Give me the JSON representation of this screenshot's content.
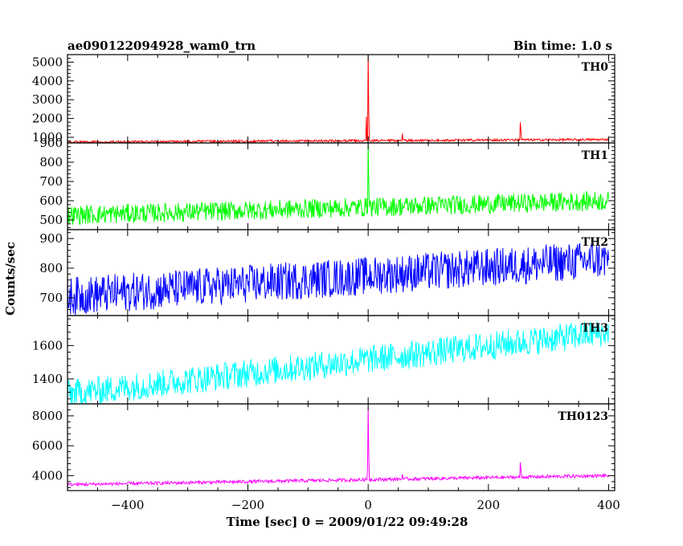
{
  "header": {
    "title": "ae090122094928_wam0_trn",
    "bin_time": "Bin time: 1.0 s"
  },
  "chart_data": {
    "type": "line",
    "xlabel": "Time [sec] 0 = 2009/01/22 09:49:28",
    "ylabel": "Counts/sec",
    "xlim": [
      -500,
      410
    ],
    "x_ticks": [
      -400,
      -200,
      0,
      200,
      400
    ],
    "x_tick_labels": [
      "−400",
      "−200",
      "0",
      "200",
      "400"
    ],
    "bin_time_s": 1.0,
    "panels": [
      {
        "label": "TH0",
        "color": "#ff0000",
        "ylim": [
          700,
          5400
        ],
        "y_ticks": [
          1000,
          2000,
          3000,
          4000,
          5000
        ],
        "baseline": [
          [
            -500,
            750
          ],
          [
            400,
            880
          ]
        ],
        "noise": 60,
        "spikes": [
          [
            -3,
            2100
          ],
          [
            0,
            5400
          ],
          [
            1,
            2400
          ],
          [
            57,
            1200
          ],
          [
            253,
            1800
          ],
          [
            254,
            1400
          ]
        ]
      },
      {
        "label": "TH1",
        "color": "#00ff00",
        "ylim": [
          450,
          900
        ],
        "y_ticks": [
          500,
          600,
          700,
          800,
          900
        ],
        "baseline": [
          [
            -500,
            525
          ],
          [
            400,
            600
          ]
        ],
        "noise": 50,
        "spikes": [
          [
            0,
            900
          ],
          [
            1,
            700
          ]
        ]
      },
      {
        "label": "TH2",
        "color": "#0000ff",
        "ylim": [
          640,
          930
        ],
        "y_ticks": [
          700,
          800,
          900
        ],
        "baseline": [
          [
            -500,
            705
          ],
          [
            400,
            830
          ]
        ],
        "noise": 65,
        "spikes": []
      },
      {
        "label": "TH3",
        "color": "#00ffff",
        "ylim": [
          1250,
          1780
        ],
        "y_ticks": [
          1400,
          1600
        ],
        "baseline": [
          [
            -500,
            1310
          ],
          [
            400,
            1680
          ]
        ],
        "noise": 85,
        "spikes": []
      },
      {
        "label": "TH0123",
        "color": "#ff00ff",
        "ylim": [
          3000,
          8800
        ],
        "y_ticks": [
          4000,
          6000,
          8000
        ],
        "baseline": [
          [
            -500,
            3400
          ],
          [
            400,
            4000
          ]
        ],
        "noise": 110,
        "spikes": [
          [
            -1,
            4600
          ],
          [
            0,
            8600
          ],
          [
            1,
            5500
          ],
          [
            57,
            4100
          ],
          [
            253,
            4900
          ],
          [
            254,
            4500
          ]
        ]
      }
    ]
  }
}
